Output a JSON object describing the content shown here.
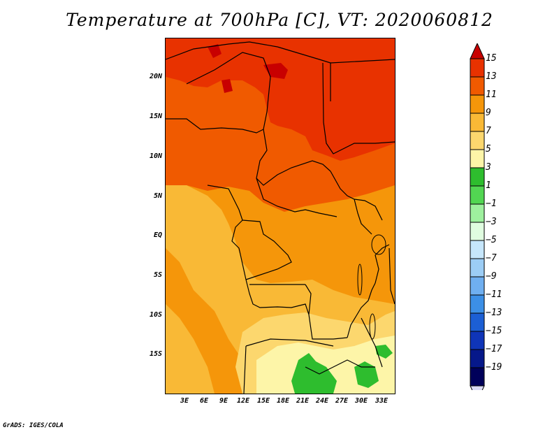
{
  "title": "Temperature at 700hPa [C], VT: 2020060812",
  "credit": "GrADS: IGES/COLA",
  "lat_labels": [
    "20N",
    "15N",
    "10N",
    "5N",
    "EQ",
    "5S",
    "10S",
    "15S"
  ],
  "lon_labels": [
    "3E",
    "6E",
    "9E",
    "12E",
    "15E",
    "18E",
    "21E",
    "24E",
    "27E",
    "30E",
    "33E"
  ],
  "colorbar": {
    "labels": [
      "15",
      "13",
      "11",
      "9",
      "7",
      "5",
      "3",
      "1",
      "−1",
      "−3",
      "−5",
      "−7",
      "−9",
      "−11",
      "−13",
      "−15",
      "−17",
      "−19"
    ],
    "colors": [
      "#c80000",
      "#e83200",
      "#f05a00",
      "#f5960a",
      "#f9b936",
      "#fcd76e",
      "#fdf5a8",
      "#2ebd2e",
      "#52d652",
      "#9ef09e",
      "#e0fde0",
      "#c6e6fb",
      "#9ccdf5",
      "#6faff0",
      "#3c8fe6",
      "#1c5fd4",
      "#0f35b8",
      "#06188a",
      "#00005a",
      "#dadaf5"
    ]
  },
  "map": {
    "extent": {
      "lon_min": 0.5,
      "lon_max": 35,
      "lat_max": 24.5,
      "lat_min": -20
    },
    "colors": {
      "t13": "#e83200",
      "t11": "#f05a00",
      "t9": "#f5960a",
      "t7": "#f9b936",
      "t5": "#fcd76e",
      "t3": "#fdf5a8",
      "t1": "#2ebd2e",
      "t15": "#c80000"
    }
  }
}
